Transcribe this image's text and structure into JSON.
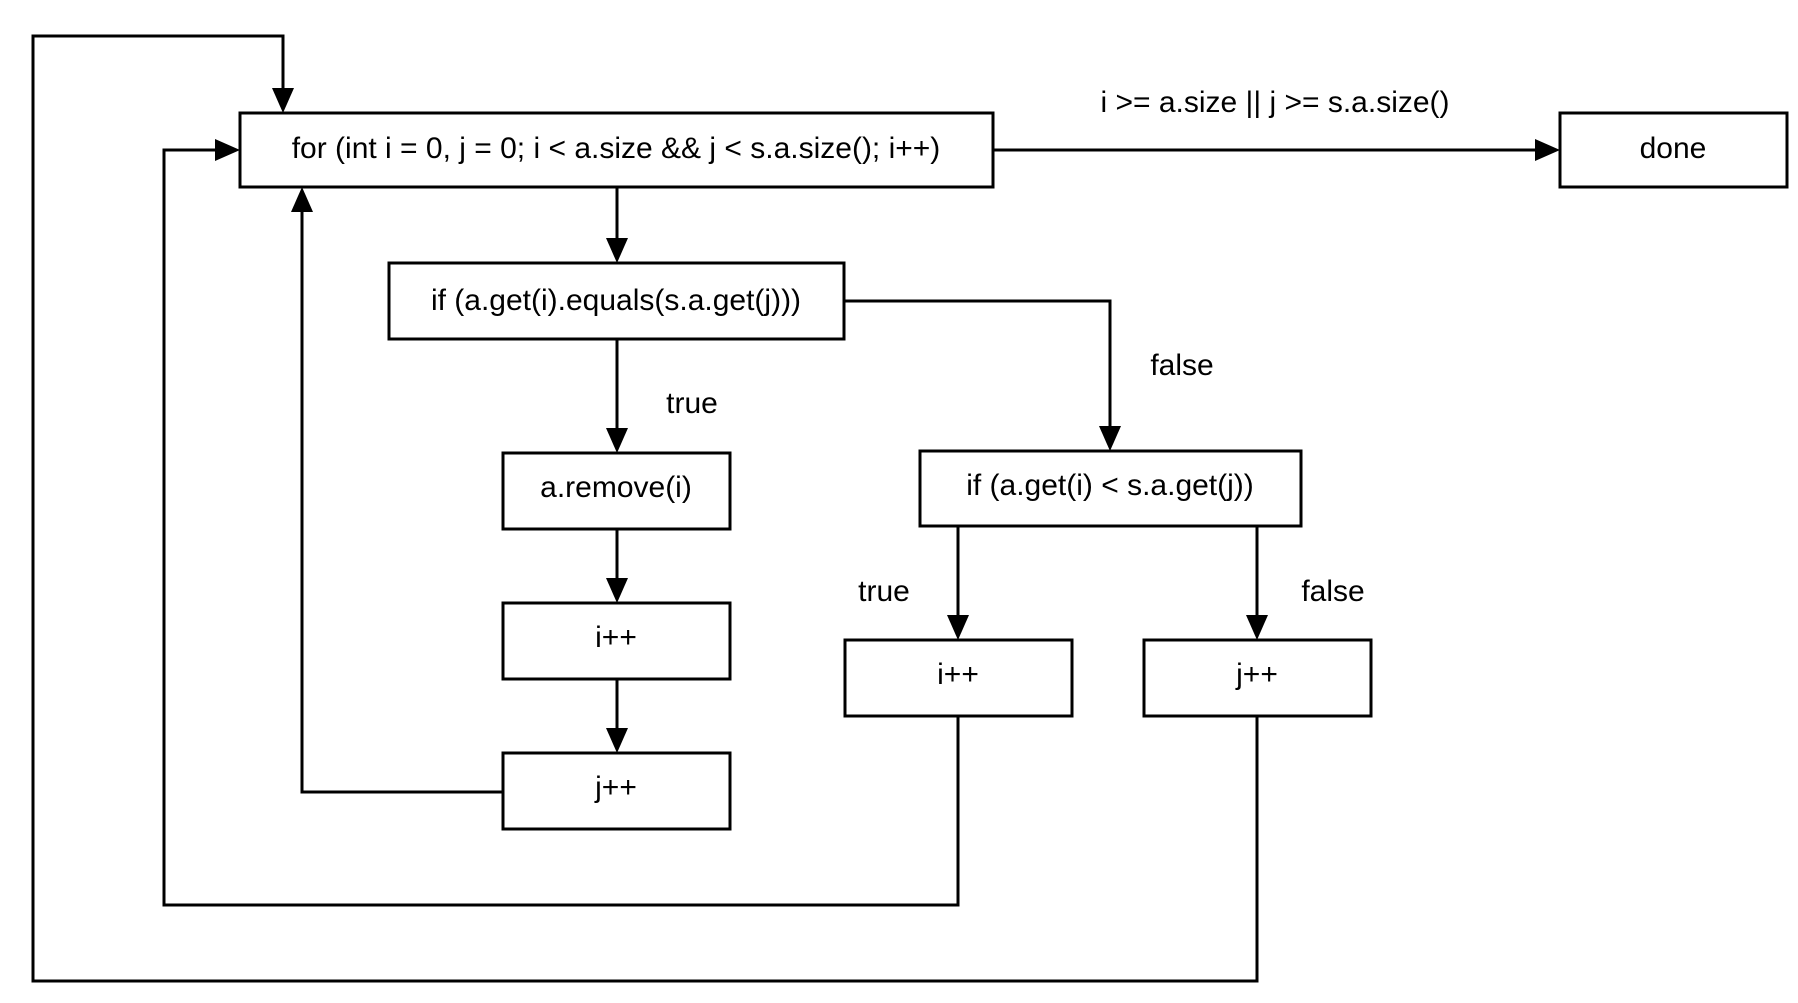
{
  "nodes": {
    "for_loop": "for (int i = 0, j = 0; i < a.size && j < s.a.size(); i++)",
    "done": "done",
    "if_equals": "if (a.get(i).equals(s.a.get(j)))",
    "remove": "a.remove(i)",
    "inc_i_left": "i++",
    "inc_j_left": "j++",
    "if_less": "if (a.get(i) < s.a.get(j))",
    "inc_i_right": "i++",
    "inc_j_right": "j++"
  },
  "edge_labels": {
    "exit_condition": "i >= a.size || j >= s.a.size()",
    "equals_true": "true",
    "equals_false": "false",
    "less_true": "true",
    "less_false": "false"
  }
}
